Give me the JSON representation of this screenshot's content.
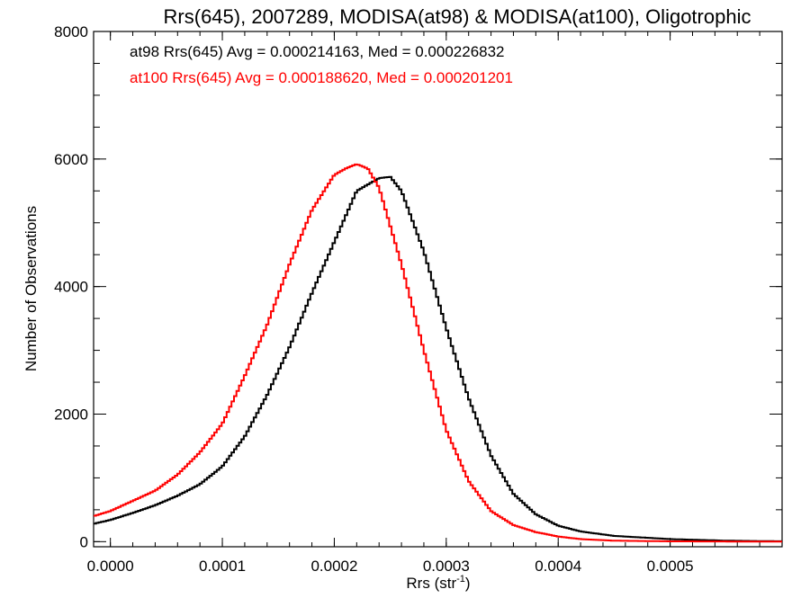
{
  "chart_data": {
    "type": "line",
    "title": "Rrs(645), 2007289, MODISA(at98) & MODISA(at100), Oligotrophic",
    "xlabel": "Rrs (str",
    "xlabel_superscript": "-1",
    "xlabel_suffix": ")",
    "ylabel": "Number of Observations",
    "xlim": [
      -1.5e-05,
      0.0006
    ],
    "ylim": [
      -80,
      8000
    ],
    "x_ticks": [
      0.0,
      0.0001,
      0.0002,
      0.0003,
      0.0004,
      0.0005
    ],
    "x_tick_labels": [
      "0.0000",
      "0.0001",
      "0.0002",
      "0.0003",
      "0.0004",
      "0.0005"
    ],
    "y_ticks": [
      0,
      2000,
      4000,
      6000,
      8000
    ],
    "y_tick_labels": [
      "0",
      "2000",
      "4000",
      "6000",
      "8000"
    ],
    "grid": false,
    "legend_position": "top-left",
    "series": [
      {
        "name": "at98 Rrs(645) Avg = 0.000214163, Med = 0.000226832",
        "color": "#000000",
        "x": [
          -1.5e-05,
          0.0,
          2e-05,
          4e-05,
          6e-05,
          8e-05,
          0.0001,
          0.00012,
          0.00014,
          0.00016,
          0.00018,
          0.0002,
          0.00022,
          0.00024,
          0.00025,
          0.00026,
          0.00028,
          0.0003,
          0.00032,
          0.00034,
          0.00036,
          0.00038,
          0.0004,
          0.00042,
          0.00045,
          0.0005,
          0.00055,
          0.0006
        ],
        "values": [
          280,
          340,
          450,
          570,
          720,
          900,
          1180,
          1650,
          2300,
          3050,
          3900,
          4700,
          5500,
          5700,
          5720,
          5500,
          4550,
          3350,
          2250,
          1350,
          750,
          430,
          250,
          160,
          90,
          40,
          15,
          5
        ]
      },
      {
        "name": "at100 Rrs(645) Avg = 0.000188620, Med = 0.000201201",
        "color": "#ff0000",
        "x": [
          -1.5e-05,
          0.0,
          2e-05,
          4e-05,
          6e-05,
          8e-05,
          0.0001,
          0.00012,
          0.00014,
          0.00016,
          0.00018,
          0.0002,
          0.00021,
          0.00022,
          0.00023,
          0.00024,
          0.00026,
          0.00028,
          0.0003,
          0.00032,
          0.00034,
          0.00036,
          0.00038,
          0.0004,
          0.00042,
          0.00045,
          0.0005,
          0.0006
        ],
        "values": [
          400,
          480,
          640,
          800,
          1050,
          1400,
          1850,
          2600,
          3400,
          4350,
          5200,
          5750,
          5850,
          5920,
          5850,
          5550,
          4350,
          3000,
          1750,
          950,
          480,
          260,
          150,
          80,
          40,
          15,
          5,
          0
        ]
      }
    ]
  }
}
